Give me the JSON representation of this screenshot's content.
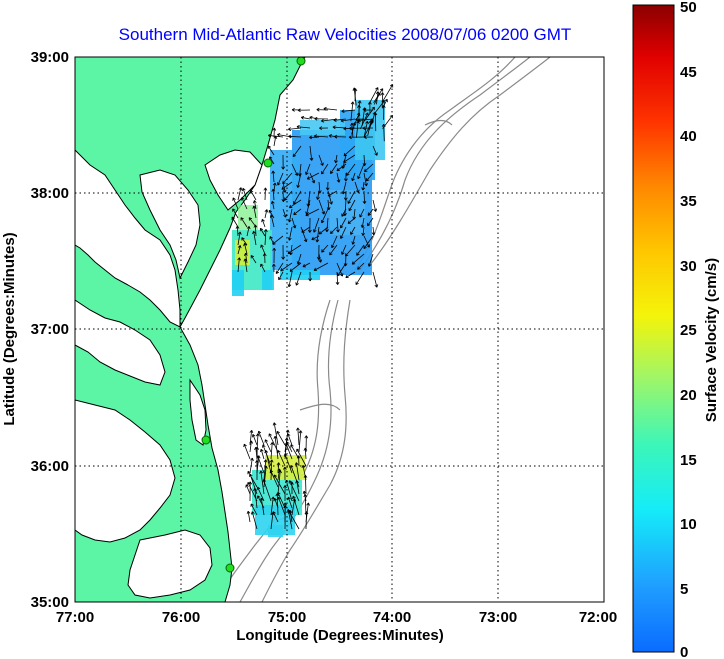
{
  "title": "Southern Mid-Atlantic Raw Velocities 2008/07/06 0200 GMT",
  "xaxis": {
    "label": "Longitude (Degrees:Minutes)",
    "ticks": [
      "77:00",
      "76:00",
      "75:00",
      "74:00",
      "73:00",
      "72:00"
    ],
    "range": [
      -77,
      -72
    ]
  },
  "yaxis": {
    "label": "Latitude (Degrees:Minutes)",
    "ticks": [
      "39:00",
      "38:00",
      "37:00",
      "36:00",
      "35:00"
    ],
    "range": [
      35,
      39
    ]
  },
  "colorbar": {
    "label": "Surface Velocity (cm/s)",
    "ticks": [
      "50",
      "45",
      "40",
      "35",
      "30",
      "25",
      "20",
      "15",
      "10",
      "5",
      "0"
    ],
    "range": [
      0,
      50
    ]
  },
  "colors": {
    "land": "#5cf5a6",
    "coast": "#000000",
    "bathymetry": "#8a8a8a",
    "grid": "#000000",
    "title": "#0000ff",
    "station": "#22dd22"
  },
  "legend": "colorbar right",
  "grid": true
}
